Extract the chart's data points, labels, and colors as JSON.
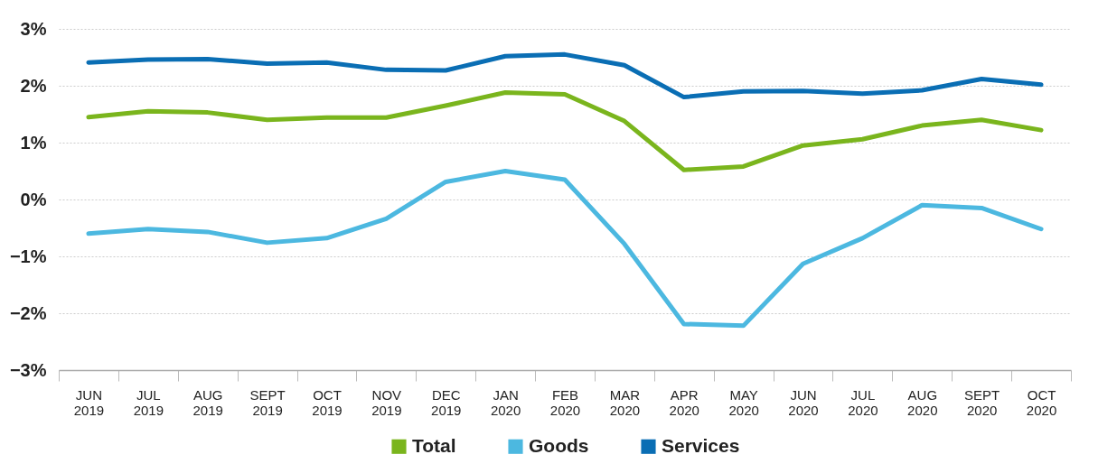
{
  "chart_data": {
    "type": "line",
    "categories": [
      "JUN 2019",
      "JUL 2019",
      "AUG 2019",
      "SEPT 2019",
      "OCT 2019",
      "NOV 2019",
      "DEC 2019",
      "JAN 2020",
      "FEB 2020",
      "MAR 2020",
      "APR 2020",
      "MAY 2020",
      "JUN 2020",
      "JUL 2020",
      "AUG 2020",
      "SEPT 2020",
      "OCT 2020"
    ],
    "series": [
      {
        "name": "Total",
        "color": "#7ab51d",
        "values": [
          1.45,
          1.55,
          1.53,
          1.4,
          1.44,
          1.44,
          1.65,
          1.88,
          1.85,
          1.38,
          0.52,
          0.58,
          0.95,
          1.06,
          1.3,
          1.4,
          1.22
        ]
      },
      {
        "name": "Goods",
        "color": "#4cb8e0",
        "values": [
          -0.6,
          -0.52,
          -0.57,
          -0.76,
          -0.68,
          -0.34,
          0.31,
          0.5,
          0.35,
          -0.78,
          -2.19,
          -2.22,
          -1.13,
          -0.68,
          -0.1,
          -0.15,
          -0.52
        ]
      },
      {
        "name": "Services",
        "color": "#0a6eb4",
        "values": [
          2.41,
          2.46,
          2.47,
          2.39,
          2.41,
          2.28,
          2.27,
          2.52,
          2.55,
          2.36,
          1.8,
          1.9,
          1.91,
          1.86,
          1.92,
          2.12,
          2.02
        ]
      }
    ],
    "ylim": [
      -3,
      3
    ],
    "yticks": [
      {
        "value": -3,
        "label": "−3%"
      },
      {
        "value": -2,
        "label": "−2%"
      },
      {
        "value": -1,
        "label": "−1%"
      },
      {
        "value": 0,
        "label": "0%"
      },
      {
        "value": 1,
        "label": "1%"
      },
      {
        "value": 2,
        "label": "2%"
      },
      {
        "value": 3,
        "label": "3%"
      }
    ],
    "grid": "y",
    "legend": "bottom",
    "marker": "none",
    "line_style": "solid"
  }
}
